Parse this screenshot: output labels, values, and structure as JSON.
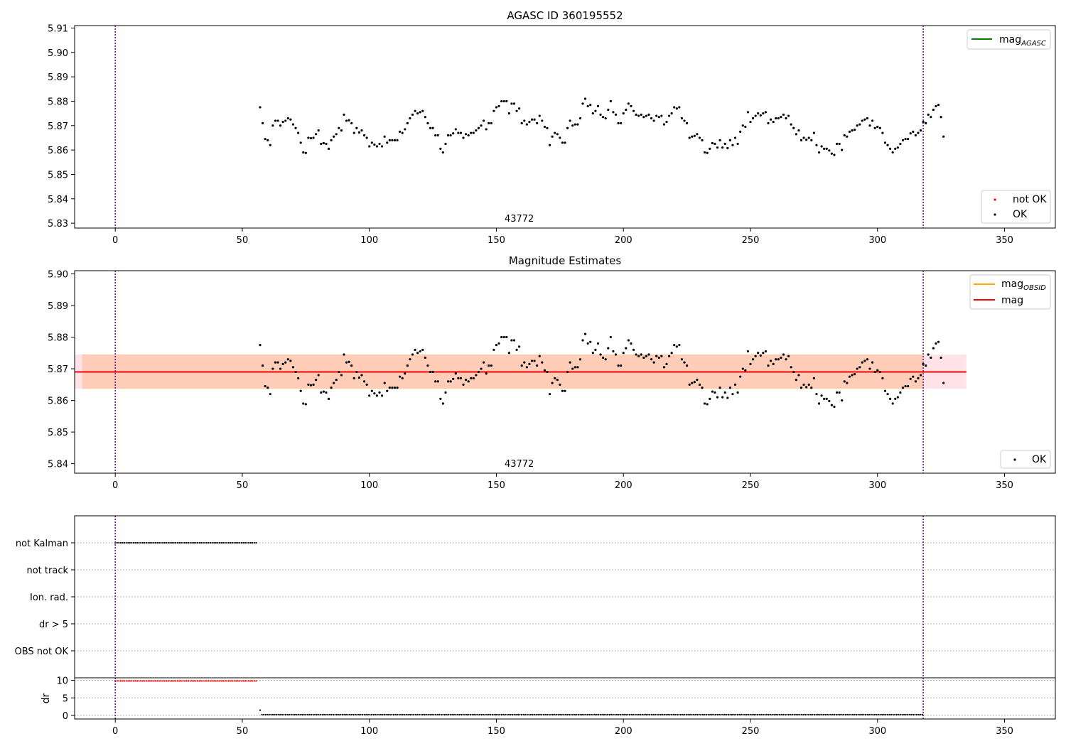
{
  "chart_data": [
    {
      "type": "scatter",
      "title": "AGASC ID 360195552",
      "xlim": [
        -16,
        370
      ],
      "ylim": [
        5.828,
        5.911
      ],
      "xticks": [
        0,
        50,
        100,
        150,
        200,
        250,
        300,
        350
      ],
      "yticks": [
        5.83,
        5.84,
        5.85,
        5.86,
        5.87,
        5.88,
        5.89,
        5.9,
        5.91
      ],
      "obsid_label": "43772",
      "obsid_label_x": 159,
      "vlines": [
        0,
        318
      ],
      "legend_top": {
        "position": "top-right",
        "entries": [
          {
            "label": "mag",
            "subscript": "AGASC",
            "color": "#008000",
            "kind": "line"
          }
        ]
      },
      "legend_bottom": {
        "position": "bottom-right",
        "entries": [
          {
            "label": "not OK",
            "color": "#ff0000",
            "kind": "point"
          },
          {
            "label": "OK",
            "color": "#000000",
            "kind": "point"
          }
        ]
      },
      "series": [
        {
          "name": "OK",
          "color": "#000000",
          "source": "ok_points"
        }
      ]
    },
    {
      "type": "scatter",
      "title": "Magnitude Estimates",
      "xlim": [
        -16,
        370
      ],
      "ylim": [
        5.837,
        5.901
      ],
      "xticks": [
        0,
        50,
        100,
        150,
        200,
        250,
        300,
        350
      ],
      "yticks": [
        5.84,
        5.85,
        5.86,
        5.87,
        5.88,
        5.89,
        5.9
      ],
      "obsid_label": "43772",
      "obsid_label_x": 159,
      "vlines": [
        0,
        318
      ],
      "mag_line": {
        "value": 5.869,
        "x": [
          -16,
          335
        ],
        "color": "#ff0000",
        "band": [
          5.8637,
          5.8745
        ],
        "band_color": "#ffc0cb"
      },
      "mag_obsid_band": {
        "value": 5.869,
        "x": [
          57,
          318
        ],
        "band": [
          5.8637,
          5.8745
        ],
        "color": "#ffa500"
      },
      "legend_top": {
        "position": "top-right",
        "entries": [
          {
            "label": "mag",
            "subscript": "OBSID",
            "color": "#ffa500",
            "kind": "line"
          },
          {
            "label": "mag",
            "subscript": "",
            "color": "#ff0000",
            "kind": "line"
          }
        ]
      },
      "legend_bottom": {
        "position": "bottom-right",
        "entries": [
          {
            "label": "OK",
            "color": "#000000",
            "kind": "point"
          }
        ]
      },
      "series": [
        {
          "name": "OK",
          "color": "#000000",
          "source": "ok_points"
        }
      ]
    },
    {
      "type": "scatter",
      "xlim": [
        -16,
        370
      ],
      "xticks": [
        0,
        50,
        100,
        150,
        200,
        250,
        300,
        350
      ],
      "flag_categories": [
        "not Kalman",
        "not track",
        "Ion. rad.",
        "dr > 5",
        "OBS not OK"
      ],
      "flag_series": [
        {
          "category": "not Kalman",
          "x_range": [
            0,
            56
          ],
          "step": 0.72
        }
      ],
      "vlines": [
        0,
        318
      ]
    },
    {
      "type": "scatter",
      "ylabel": "dr",
      "xlim": [
        -16,
        370
      ],
      "ylim": [
        -1,
        10.7
      ],
      "yticks": [
        0,
        5,
        10
      ],
      "xticks": [
        0,
        50,
        100,
        150,
        200,
        250,
        300,
        350
      ],
      "vlines": [
        0,
        318
      ],
      "series": [
        {
          "name": "not OK",
          "color": "#ff0000",
          "x_range": [
            0,
            56
          ],
          "step": 0.72,
          "value": 9.8
        },
        {
          "name": "OK",
          "color": "#000000",
          "x_range": [
            57,
            318
          ],
          "step": 0.72,
          "value": 0.25,
          "first_value": 1.5
        }
      ]
    }
  ],
  "ok_points": {
    "x_start": 57,
    "x_step": 1,
    "y": [
      5.8775,
      5.871,
      5.8645,
      5.864,
      5.862,
      5.87,
      5.872,
      5.872,
      5.87,
      5.8715,
      5.872,
      5.873,
      5.8725,
      5.8705,
      5.869,
      5.867,
      5.863,
      5.859,
      5.8588,
      5.865,
      5.8648,
      5.865,
      5.8665,
      5.868,
      5.8625,
      5.8628,
      5.8625,
      5.8605,
      5.864,
      5.8655,
      5.8665,
      5.869,
      5.868,
      5.8745,
      5.872,
      5.8722,
      5.871,
      5.867,
      5.869,
      5.8672,
      5.868,
      5.866,
      5.865,
      5.8615,
      5.863,
      5.8622,
      5.8615,
      5.8625,
      5.8615,
      5.8655,
      5.863,
      5.864,
      5.864,
      5.864,
      5.864,
      5.8675,
      5.867,
      5.8685,
      5.871,
      5.873,
      5.8745,
      5.876,
      5.875,
      5.8755,
      5.876,
      5.8735,
      5.871,
      5.869,
      5.869,
      5.866,
      5.866,
      5.8605,
      5.859,
      5.8625,
      5.866,
      5.866,
      5.8668,
      5.8685,
      5.867,
      5.867,
      5.865,
      5.8665,
      5.866,
      5.867,
      5.867,
      5.868,
      5.869,
      5.87,
      5.872,
      5.8685,
      5.871,
      5.871,
      5.876,
      5.8775,
      5.878,
      5.88,
      5.88,
      5.88,
      5.875,
      5.879,
      5.879,
      5.876,
      5.877,
      5.871,
      5.872,
      5.8705,
      5.8715,
      5.8725,
      5.8725,
      5.871,
      5.874,
      5.872,
      5.8695,
      5.869,
      5.862,
      5.8655,
      5.867,
      5.8665,
      5.865,
      5.863,
      5.863,
      5.869,
      5.872,
      5.87,
      5.8705,
      5.8705,
      5.873,
      5.879,
      5.881,
      5.878,
      5.8785,
      5.875,
      5.876,
      5.878,
      5.8745,
      5.8735,
      5.873,
      5.8765,
      5.88,
      5.8755,
      5.8745,
      5.871,
      5.871,
      5.875,
      5.8765,
      5.879,
      5.878,
      5.876,
      5.8745,
      5.874,
      5.8745,
      5.8735,
      5.874,
      5.8745,
      5.873,
      5.872,
      5.874,
      5.8735,
      5.874,
      5.8705,
      5.8715,
      5.874,
      5.875,
      5.8775,
      5.877,
      5.8775,
      5.873,
      5.872,
      5.871,
      5.865,
      5.8655,
      5.8658,
      5.8665,
      5.865,
      5.864,
      5.859,
      5.8588,
      5.8605,
      5.8628,
      5.8625,
      5.861,
      5.864,
      5.861,
      5.8625,
      5.8608,
      5.864,
      5.862,
      5.865,
      5.8625,
      5.8675,
      5.87,
      5.8695,
      5.8755,
      5.8715,
      5.873,
      5.874,
      5.875,
      5.8742,
      5.875,
      5.8755,
      5.871,
      5.8725,
      5.8715,
      5.873,
      5.873,
      5.8735,
      5.8745,
      5.873,
      5.874,
      5.8705,
      5.869,
      5.8665,
      5.868,
      5.864,
      5.865,
      5.8642,
      5.865,
      5.864,
      5.867,
      5.862,
      5.859,
      5.8615,
      5.8605,
      5.8605,
      5.8598,
      5.8585,
      5.858,
      5.8625,
      5.8625,
      5.86,
      5.866,
      5.8655,
      5.8675,
      5.868,
      5.8683,
      5.87,
      5.8705,
      5.872,
      5.8725,
      5.873,
      5.87,
      5.872,
      5.869,
      5.8695,
      5.869,
      5.867,
      5.863,
      5.862,
      5.8605,
      5.859,
      5.8605,
      5.861,
      5.8625,
      5.864,
      5.8645,
      5.8645,
      5.8668,
      5.8675,
      5.866,
      5.867,
      5.868,
      5.8715,
      5.871,
      5.8745,
      5.8735,
      5.8765,
      5.878,
      5.8785,
      5.8735,
      5.8655
    ]
  }
}
